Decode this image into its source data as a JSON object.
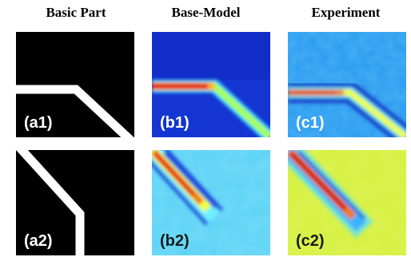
{
  "columns": {
    "basic": "Basic Part",
    "base_model": "Base-Model",
    "experiment": "Experiment"
  },
  "panels": {
    "a1": "(a1)",
    "b1": "(b1)",
    "c1": "(c1)",
    "a2": "(a2)",
    "b2": "(b2)",
    "c2": "(c2)"
  },
  "colors": {
    "part_black": "#000000",
    "weld_white": "#ffffff",
    "jet_blue": "#1430c8",
    "jet_cyan": "#3cd2ff",
    "jet_yellow": "#f5ff28",
    "jet_red": "#e60f0f"
  }
}
